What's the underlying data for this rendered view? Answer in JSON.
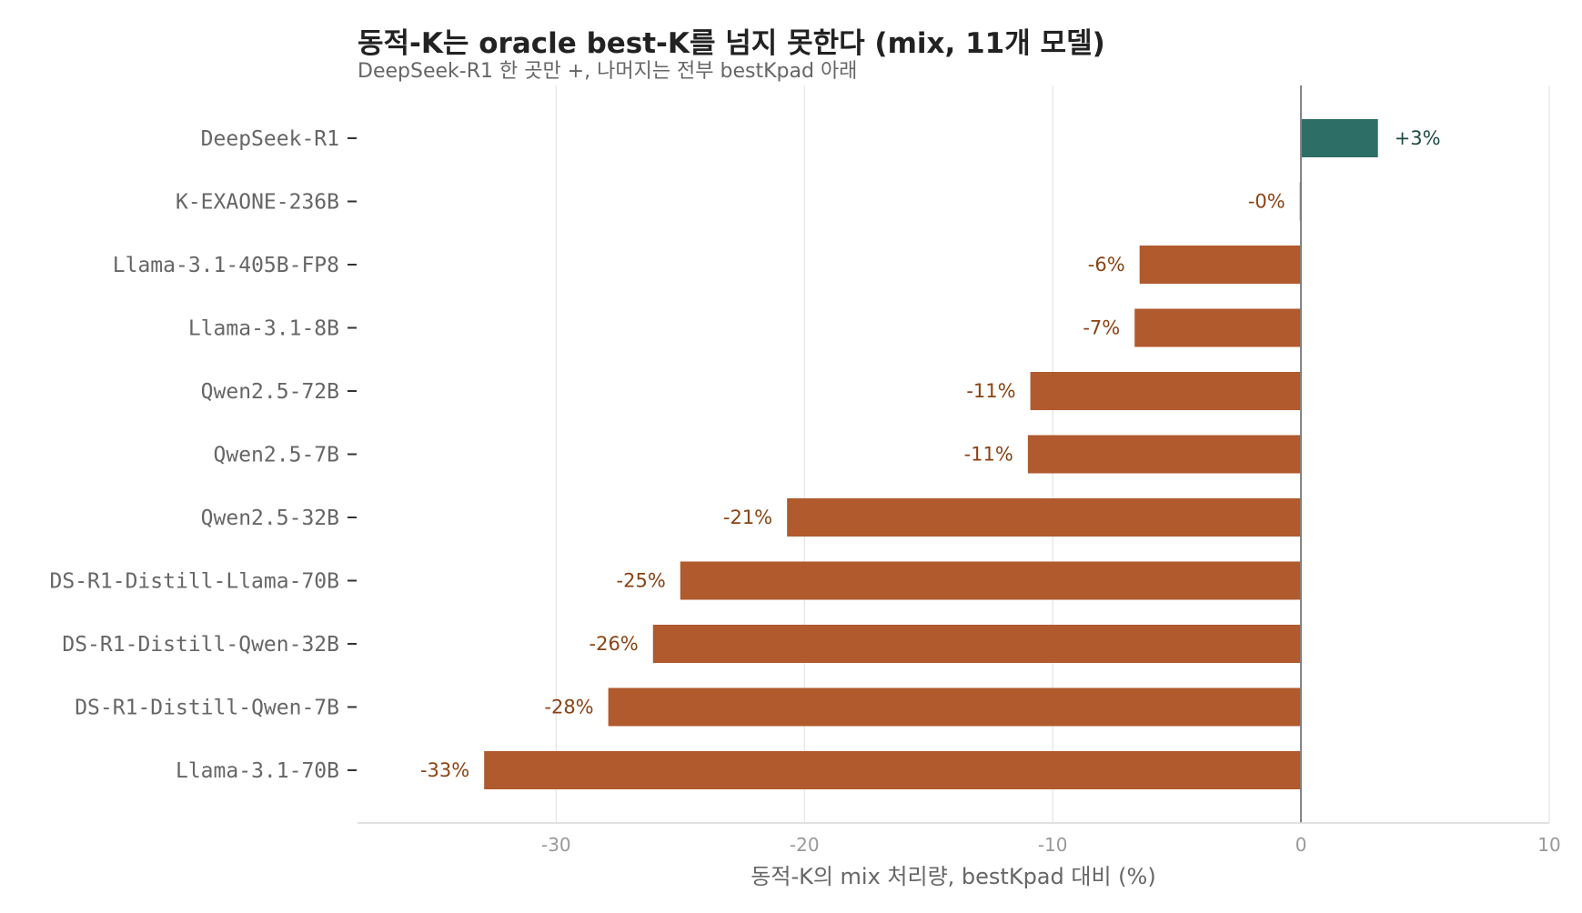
{
  "chart_data": {
    "type": "bar",
    "orientation": "horizontal",
    "title": "동적-K는 oracle best-K를 넘지 못한다 (mix, 11개 모델)",
    "subtitle": "DeepSeek-R1 한 곳만 +, 나머지는 전부 bestKpad 아래",
    "xlabel": "동적-K의 mix 처리량, bestKpad 대비 (%)",
    "ylabel": "",
    "xlim": [
      -38,
      10
    ],
    "xticks": [
      -30,
      -20,
      -10,
      0,
      10
    ],
    "grid": "vertical",
    "legend": "none",
    "categories": [
      "DeepSeek-R1",
      "K-EXAONE-236B",
      "Llama-3.1-405B-FP8",
      "Llama-3.1-8B",
      "Qwen2.5-72B",
      "Qwen2.5-7B",
      "Qwen2.5-32B",
      "DS-R1-Distill-Llama-70B",
      "DS-R1-Distill-Qwen-32B",
      "DS-R1-Distill-Qwen-7B",
      "Llama-3.1-70B"
    ],
    "values": [
      3.1,
      -0.05,
      -6.5,
      -6.7,
      -10.9,
      -11.0,
      -20.7,
      -25.0,
      -26.1,
      -27.9,
      -32.9
    ],
    "labels": [
      "+3%",
      "-0%",
      "-6%",
      "-7%",
      "-11%",
      "-11%",
      "-21%",
      "-25%",
      "-26%",
      "-28%",
      "-33%"
    ],
    "colors": {
      "positive": "#2d6e66",
      "negative": "#b05a2d",
      "positive_label": "#1f4a45",
      "negative_label": "#8a4314"
    }
  }
}
